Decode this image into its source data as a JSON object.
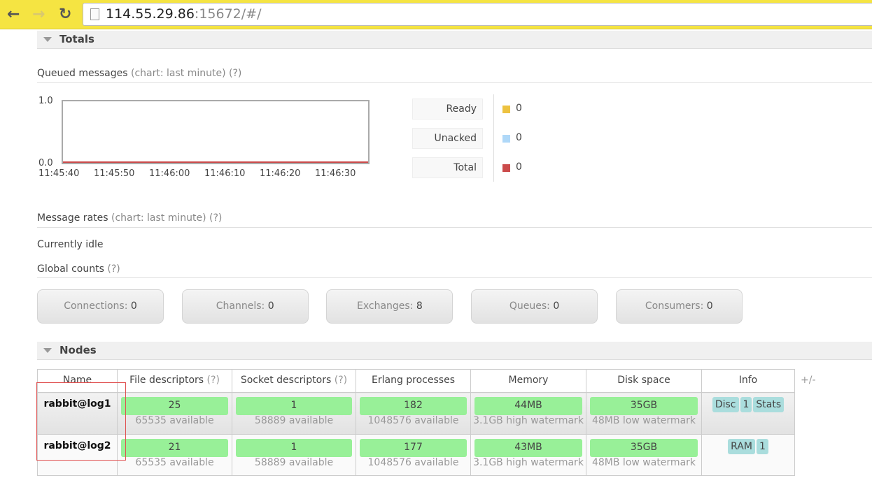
{
  "browser": {
    "back_icon": "arrow-left",
    "forward_icon": "arrow-right",
    "reload_icon": "reload",
    "url_host": "114.55.29.86",
    "url_rest": ":15672/#/"
  },
  "totals": {
    "title": "Totals",
    "queued": {
      "label": "Queued messages",
      "chart_hint": "(chart: last minute)",
      "help": "(?)"
    },
    "chart_data": {
      "type": "line",
      "ylim": [
        0.0,
        1.0
      ],
      "y_ticks": [
        "1.0",
        "0.0"
      ],
      "x_ticks": [
        "11:45:40",
        "11:45:50",
        "11:46:00",
        "11:46:10",
        "11:46:20",
        "11:46:30"
      ],
      "series": [
        {
          "name": "Ready",
          "color": "#edc240",
          "values": [
            0,
            0,
            0,
            0,
            0,
            0
          ]
        },
        {
          "name": "Unacked",
          "color": "#afd8f8",
          "values": [
            0,
            0,
            0,
            0,
            0,
            0
          ]
        },
        {
          "name": "Total",
          "color": "#cb4b4b",
          "values": [
            0,
            0,
            0,
            0,
            0,
            0
          ]
        }
      ]
    },
    "legend": [
      {
        "label": "Ready",
        "value": "0",
        "color": "#edc240"
      },
      {
        "label": "Unacked",
        "value": "0",
        "color": "#afd8f8"
      },
      {
        "label": "Total",
        "value": "0",
        "color": "#cb4b4b"
      }
    ],
    "rates": {
      "label": "Message rates",
      "chart_hint": "(chart: last minute)",
      "help": "(?)",
      "status": "Currently idle"
    },
    "global": {
      "label": "Global counts",
      "help": "(?)"
    },
    "counts": [
      {
        "label": "Connections:",
        "value": "0"
      },
      {
        "label": "Channels:",
        "value": "0"
      },
      {
        "label": "Exchanges:",
        "value": "8"
      },
      {
        "label": "Queues:",
        "value": "0"
      },
      {
        "label": "Consumers:",
        "value": "0"
      }
    ]
  },
  "nodes": {
    "title": "Nodes",
    "headers": {
      "name": "Name",
      "fd": "File descriptors",
      "sd": "Socket descriptors",
      "help": "(?)",
      "erl": "Erlang processes",
      "mem": "Memory",
      "disk": "Disk space",
      "info": "Info",
      "toggle": "+/-"
    },
    "rows": [
      {
        "name": "rabbit@log1",
        "fd": "25",
        "fd_avail": "65535 available",
        "sd": "1",
        "sd_avail": "58889 available",
        "erl": "182",
        "erl_avail": "1048576 available",
        "mem": "44MB",
        "mem_wm": "3.1GB high watermark",
        "disk": "35GB",
        "disk_wm": "48MB low watermark",
        "info": [
          "Disc",
          "1",
          "Stats"
        ]
      },
      {
        "name": "rabbit@log2",
        "fd": "21",
        "fd_avail": "65535 available",
        "sd": "1",
        "sd_avail": "58889 available",
        "erl": "177",
        "erl_avail": "1048576 available",
        "mem": "43MB",
        "mem_wm": "3.1GB high watermark",
        "disk": "35GB",
        "disk_wm": "48MB low watermark",
        "info": [
          "RAM",
          "1"
        ]
      }
    ]
  }
}
